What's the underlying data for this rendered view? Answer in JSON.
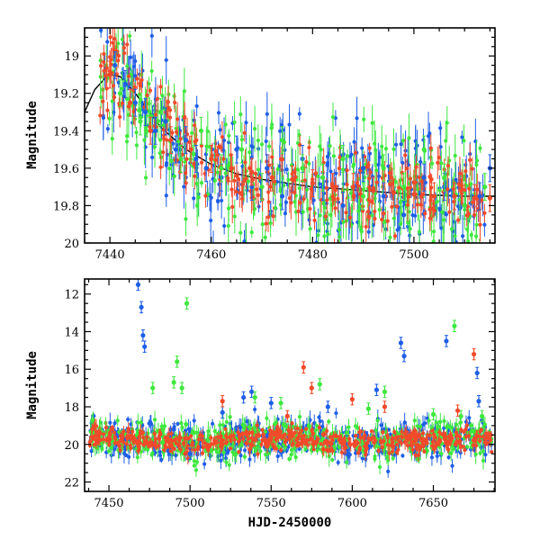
{
  "chart_data": [
    {
      "type": "scatter",
      "panel": "top",
      "title": "",
      "xlabel": "",
      "ylabel": "Magnitude",
      "xlim": [
        7435,
        7516
      ],
      "ylim": [
        20.0,
        18.85
      ],
      "y_inverted": true,
      "x_ticks": [
        "7440",
        "7460",
        "7480",
        "7500"
      ],
      "y_ticks": [
        "19",
        "19.2",
        "19.4",
        "19.6",
        "19.8",
        "20"
      ],
      "model_curve": {
        "color": "#000000",
        "x": [
          7435,
          7437,
          7439,
          7440,
          7442,
          7445,
          7450,
          7455,
          7460,
          7465,
          7470,
          7480,
          7490,
          7500,
          7510,
          7516
        ],
        "y": [
          19.3,
          19.18,
          19.12,
          19.1,
          19.11,
          19.2,
          19.38,
          19.5,
          19.58,
          19.63,
          19.66,
          19.7,
          19.72,
          19.74,
          19.75,
          19.75
        ]
      },
      "series": [
        {
          "color": "#1f5fe6",
          "x": [
            7441,
            7443,
            7445,
            7447,
            7449,
            7451,
            7453,
            7455,
            7457,
            7459,
            7462,
            7465,
            7468,
            7471,
            7474,
            7478,
            7482,
            7486,
            7490,
            7494,
            7498,
            7502,
            7506,
            7510,
            7513,
            7515
          ],
          "y": [
            19.05,
            19.15,
            19.25,
            19.3,
            19.4,
            19.35,
            19.5,
            19.45,
            19.55,
            19.6,
            19.65,
            19.5,
            19.7,
            19.6,
            19.75,
            19.55,
            19.7,
            19.8,
            19.6,
            19.75,
            19.85,
            19.65,
            19.7,
            19.8,
            19.75,
            19.6
          ]
        },
        {
          "color": "#3ee83e",
          "x": [
            7442,
            7446,
            7450,
            7454,
            7458,
            7462,
            7466,
            7470,
            7474,
            7478,
            7482,
            7486,
            7490,
            7494,
            7498,
            7502,
            7506,
            7510,
            7514
          ],
          "y": [
            19.2,
            19.35,
            19.3,
            19.55,
            19.4,
            19.6,
            19.5,
            19.7,
            19.45,
            19.6,
            19.65,
            19.55,
            19.75,
            19.6,
            19.7,
            19.5,
            19.65,
            19.8,
            19.7
          ]
        },
        {
          "color": "#f24a2a",
          "x": [
            7440,
            7444,
            7448,
            7452,
            7456,
            7460,
            7464,
            7468,
            7472,
            7476,
            7480,
            7484,
            7488,
            7492,
            7496,
            7500,
            7504,
            7508,
            7512,
            7515
          ],
          "y": [
            19.1,
            19.25,
            19.4,
            19.45,
            19.5,
            19.55,
            19.6,
            19.62,
            19.65,
            19.66,
            19.68,
            19.7,
            19.7,
            19.72,
            19.73,
            19.74,
            19.75,
            19.75,
            19.76,
            19.76
          ]
        }
      ]
    },
    {
      "type": "scatter",
      "panel": "bottom",
      "title": "",
      "xlabel": "HJD-2450000",
      "ylabel": "Magnitude",
      "xlim": [
        7435,
        7688
      ],
      "ylim": [
        22.5,
        11.2
      ],
      "y_inverted": true,
      "x_ticks": [
        "7450",
        "7500",
        "7550",
        "7600",
        "7650"
      ],
      "y_ticks": [
        "12",
        "14",
        "16",
        "18",
        "20",
        "22"
      ],
      "series": [
        {
          "color": "#1f5fe6",
          "x": [
            7468,
            7470,
            7471,
            7472,
            7490,
            7500,
            7520,
            7533,
            7538,
            7550,
            7585,
            7615,
            7630,
            7632,
            7658,
            7677,
            7678
          ],
          "y": [
            11.5,
            12.7,
            14.2,
            14.8,
            19.2,
            20.5,
            18.3,
            17.5,
            17.2,
            17.8,
            18.0,
            17.1,
            14.6,
            15.3,
            14.5,
            16.2,
            17.7
          ]
        },
        {
          "color": "#3ee83e",
          "x": [
            7477,
            7483,
            7490,
            7492,
            7495,
            7498,
            7540,
            7556,
            7580,
            7610,
            7620,
            7650,
            7663,
            7667,
            7680
          ],
          "y": [
            17.0,
            19.9,
            16.7,
            15.6,
            17.0,
            12.5,
            17.5,
            17.8,
            16.8,
            18.1,
            17.2,
            18.4,
            13.7,
            18.5,
            18.5
          ]
        },
        {
          "color": "#f24a2a",
          "x": [
            7520,
            7560,
            7570,
            7575,
            7600,
            7620,
            7665,
            7675
          ],
          "y": [
            17.7,
            18.5,
            15.9,
            17.0,
            17.6,
            18.0,
            18.2,
            15.2
          ]
        }
      ]
    }
  ]
}
